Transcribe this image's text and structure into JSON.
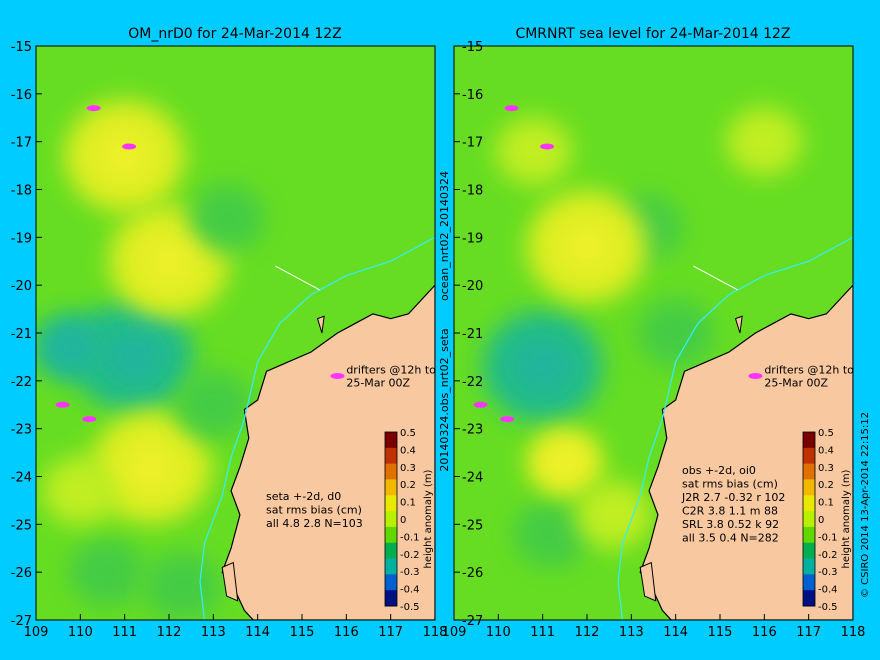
{
  "figure": {
    "background": "#00ccff",
    "vertical_label_left": "20140324.obs_nrt02_seta",
    "vertical_label_left_top": "ocean_nrt02_20140324",
    "vertical_label_right": "© CSIRO 2014   13-Apr-2014 22:15:12"
  },
  "colorbar": {
    "label": "height anomaly (m)",
    "ticks": [
      "0.5",
      "0.4",
      "0.3",
      "0.2",
      "0.1",
      "0",
      "-0.1",
      "-0.2",
      "-0.3",
      "-0.4",
      "-0.5"
    ],
    "colors": [
      "#7a0000",
      "#c03000",
      "#e07000",
      "#f0b800",
      "#e8e800",
      "#b8f000",
      "#60d800",
      "#00b050",
      "#00b0a0",
      "#0060d0",
      "#001080"
    ]
  },
  "colors": {
    "land": "#f8c8a0",
    "sea_base": "#66dd22",
    "drifter": "#ff33ff",
    "coast": "#000000"
  },
  "chart_data": [
    {
      "type": "heatmap",
      "title": "OM_nrD0 for 24-Mar-2014 12Z",
      "xlim": [
        109,
        118
      ],
      "ylim": [
        -27,
        -15
      ],
      "x_ticks": [
        "109",
        "110",
        "111",
        "112",
        "113",
        "114",
        "115",
        "116",
        "117",
        "118"
      ],
      "y_ticks": [
        "-15",
        "-16",
        "-17",
        "-18",
        "-19",
        "-20",
        "-21",
        "-22",
        "-23",
        "-24",
        "-25",
        "-26",
        "-27"
      ],
      "annotation_drifters": [
        "drifters @12h to",
        "25-Mar 00Z"
      ],
      "stats": [
        "seta +-2d, d0",
        "sat rms bias (cm)",
        "all 4.8 2.8 N=103"
      ],
      "sea_level_features": [
        {
          "kind": "low",
          "lon": 111.2,
          "lat": -21.5,
          "value": -0.15
        },
        {
          "kind": "low",
          "lon": 109.8,
          "lat": -21.3,
          "value": -0.12
        },
        {
          "kind": "low",
          "lon": 110.6,
          "lat": -26.0,
          "value": -0.05
        },
        {
          "kind": "low",
          "lon": 112.3,
          "lat": -26.3,
          "value": -0.05
        },
        {
          "kind": "high",
          "lon": 111.0,
          "lat": -17.3,
          "value": 0.13
        },
        {
          "kind": "high",
          "lon": 112.0,
          "lat": -19.5,
          "value": 0.14
        },
        {
          "kind": "high",
          "lon": 111.6,
          "lat": -23.8,
          "value": 0.16
        },
        {
          "kind": "high",
          "lon": 110.0,
          "lat": -24.3,
          "value": 0.1
        },
        {
          "kind": "low",
          "lon": 113.3,
          "lat": -18.6,
          "value": -0.04
        },
        {
          "kind": "low",
          "lon": 113.0,
          "lat": -22.5,
          "value": -0.06
        }
      ]
    },
    {
      "type": "heatmap",
      "title": "CMRNRT sea level  for 24-Mar-2014 12Z",
      "xlim": [
        109,
        118
      ],
      "ylim": [
        -27,
        -15
      ],
      "x_ticks": [
        "109",
        "110",
        "111",
        "112",
        "113",
        "114",
        "115",
        "116",
        "117",
        "118"
      ],
      "y_ticks": [
        "-15",
        "-16",
        "-17",
        "-18",
        "-19",
        "-20",
        "-21",
        "-22",
        "-23",
        "-24",
        "-25",
        "-26",
        "-27"
      ],
      "annotation_drifters": [
        "drifters @12h to",
        "25-Mar 00Z"
      ],
      "stats": [
        "obs +-2d, oi0",
        "sat rms bias (cm)",
        "J2R   2.7 -0.32 r 102",
        "C2R   3.8 1.1 m 88",
        "SRL   3.8 0.52 k 92",
        "all   3.5 0.4 N=282"
      ],
      "sea_level_features": [
        {
          "kind": "low",
          "lon": 111.0,
          "lat": -21.7,
          "value": -0.14
        },
        {
          "kind": "low",
          "lon": 113.3,
          "lat": -18.8,
          "value": -0.07
        },
        {
          "kind": "low",
          "lon": 114.0,
          "lat": -21.0,
          "value": -0.05
        },
        {
          "kind": "low",
          "lon": 111.2,
          "lat": -25.2,
          "value": -0.06
        },
        {
          "kind": "high",
          "lon": 110.8,
          "lat": -17.2,
          "value": 0.1
        },
        {
          "kind": "high",
          "lon": 112.0,
          "lat": -19.2,
          "value": 0.14
        },
        {
          "kind": "high",
          "lon": 111.5,
          "lat": -23.7,
          "value": 0.12
        },
        {
          "kind": "high",
          "lon": 112.6,
          "lat": -24.8,
          "value": 0.1
        },
        {
          "kind": "high",
          "lon": 116.0,
          "lat": -17.0,
          "value": 0.08
        }
      ]
    }
  ]
}
